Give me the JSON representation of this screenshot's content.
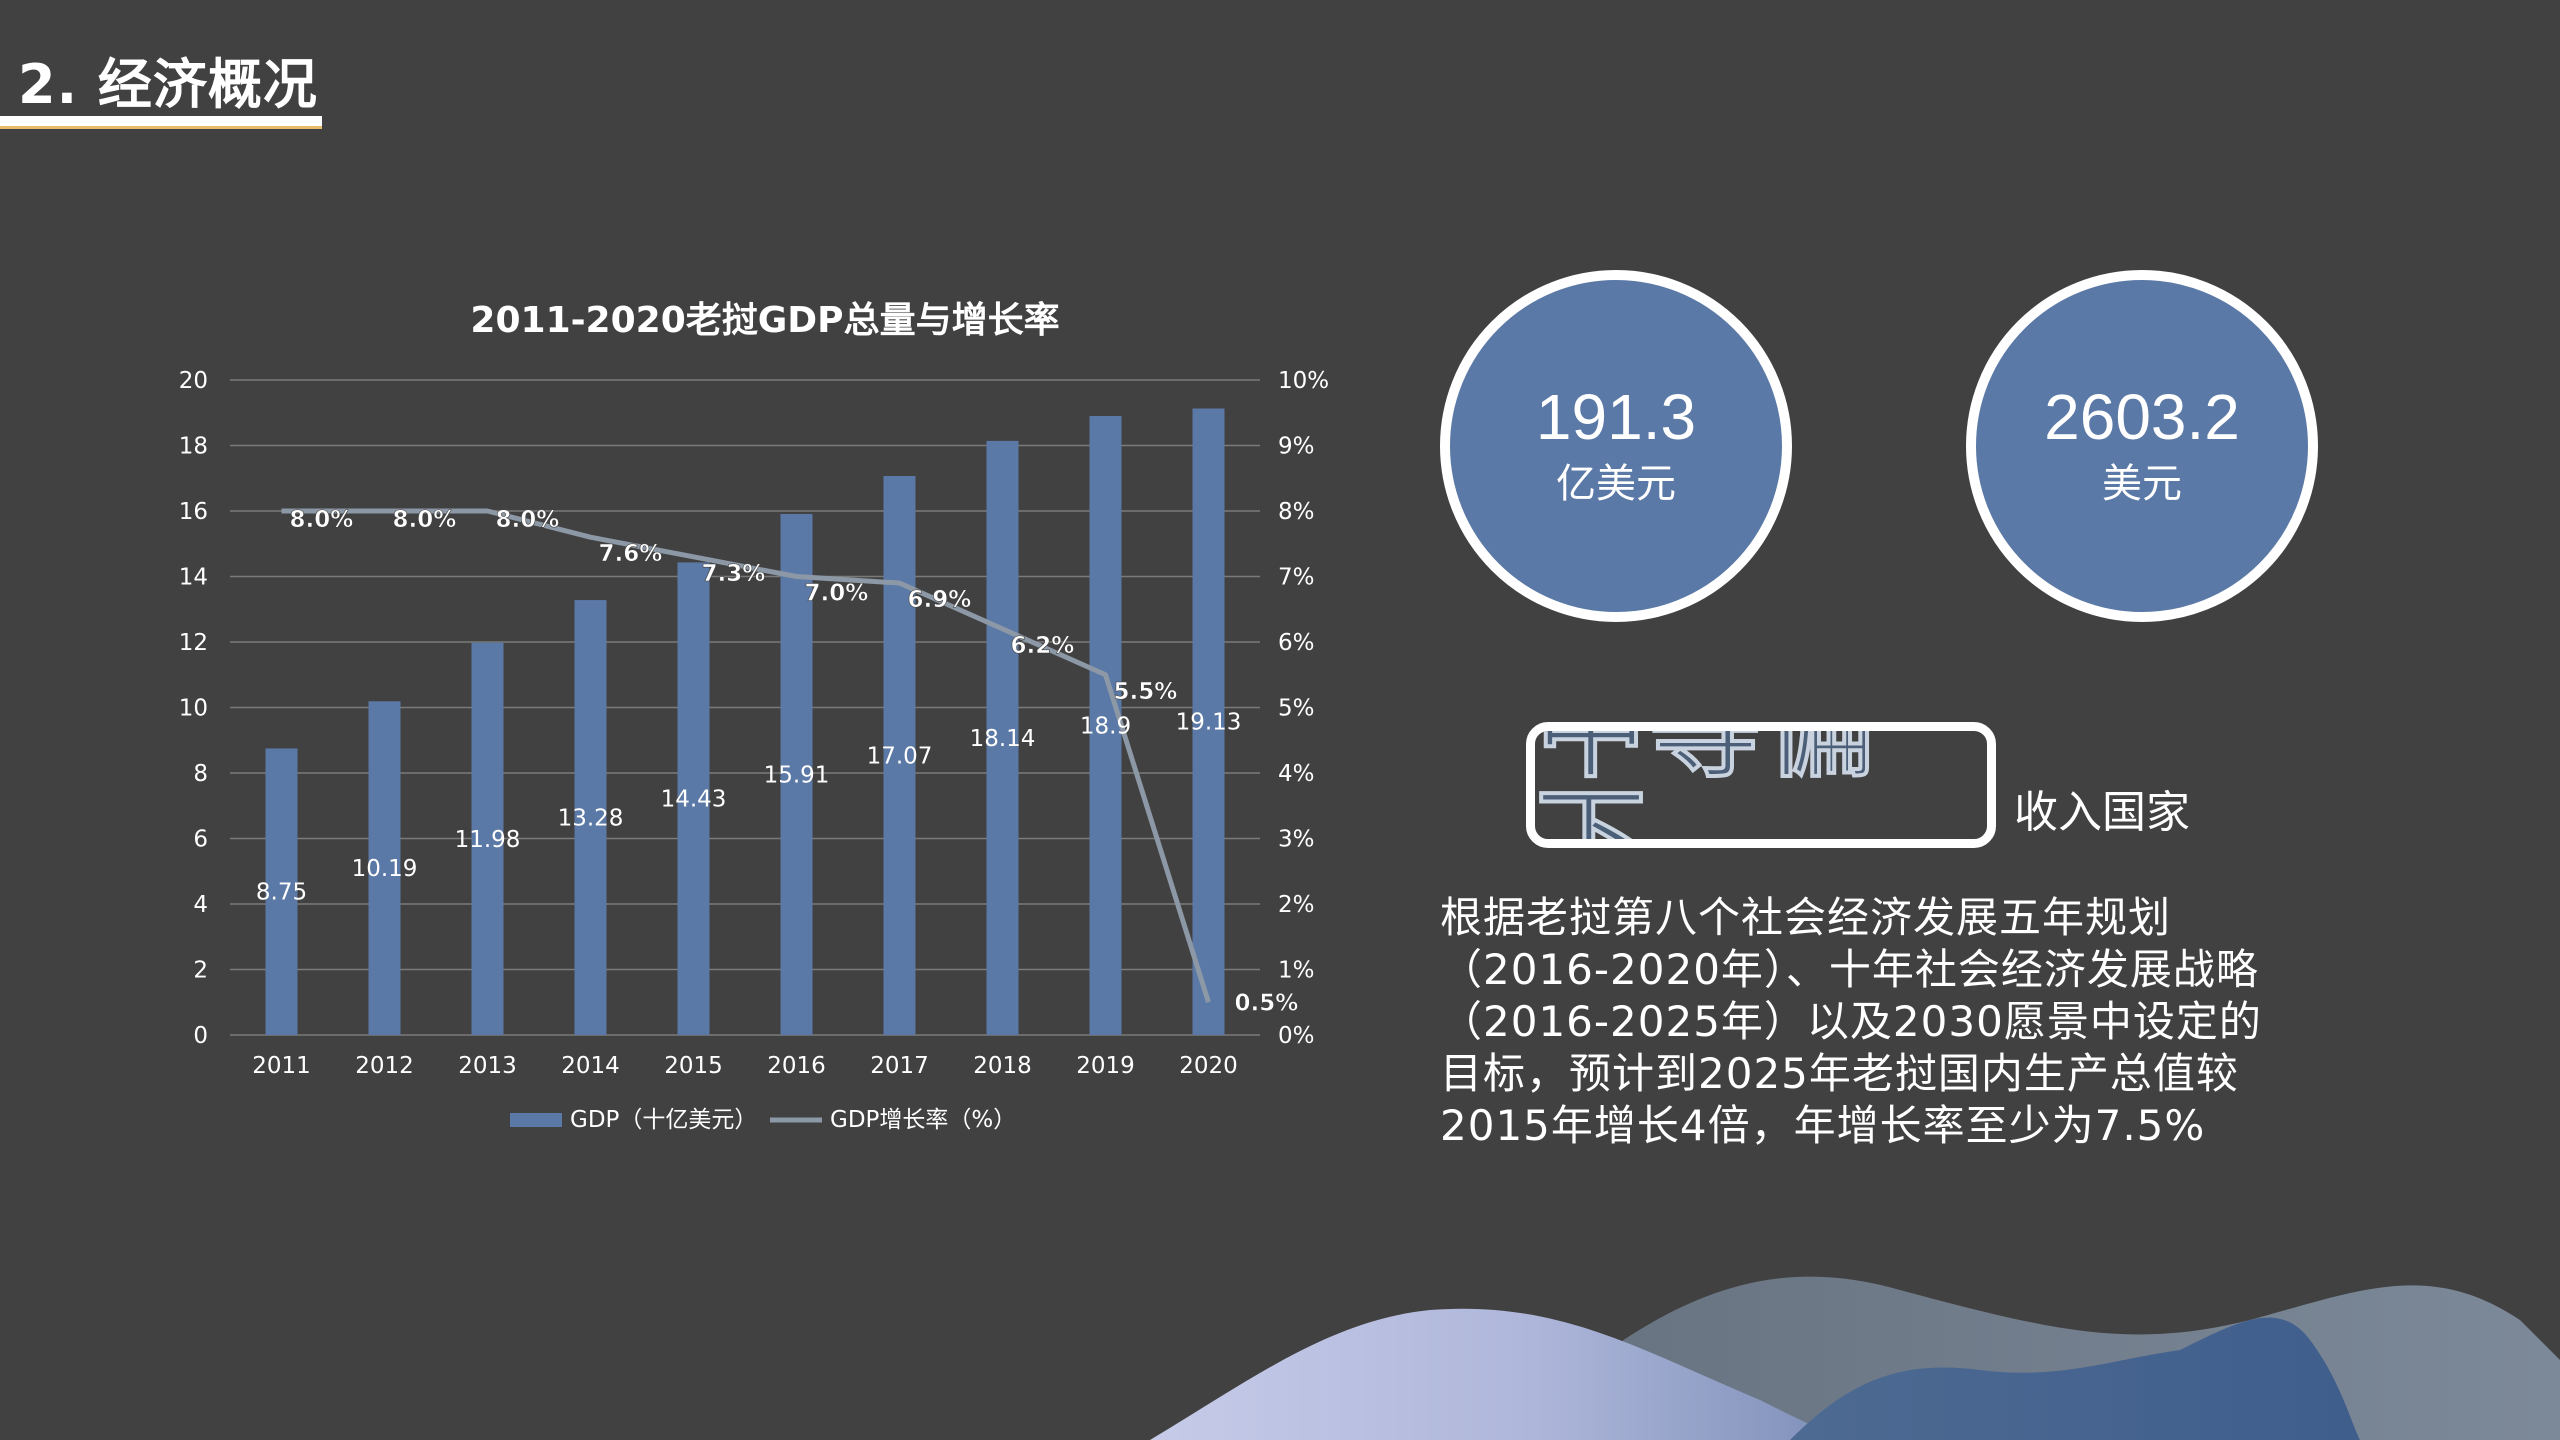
{
  "slide": {
    "title": "2. 经济概况"
  },
  "stats": [
    {
      "value": "191.3",
      "unit": "亿美元"
    },
    {
      "value": "2603.2",
      "unit": "美元"
    }
  ],
  "income": {
    "level": "中等偏下",
    "suffix": "收入国家"
  },
  "description": "根据老挝第八个社会经济发展五年规划（2016-2020年）、十年社会经济发展战略（2016-2025年）以及2030愿景中设定的目标，预计到2025年老挝国内生产总值较2015年增长4倍，年增长率至少为7.5%",
  "chart_data": {
    "type": "bar",
    "title": "2011-2020老挝GDP总量与增长率",
    "categories": [
      "2011",
      "2012",
      "2013",
      "2014",
      "2015",
      "2016",
      "2017",
      "2018",
      "2019",
      "2020"
    ],
    "series": [
      {
        "name": "GDP（十亿美元）",
        "type": "bar",
        "axis": "left",
        "values": [
          8.75,
          10.19,
          11.98,
          13.28,
          14.43,
          15.91,
          17.07,
          18.14,
          18.9,
          19.13
        ],
        "labels": [
          "8.75",
          "10.19",
          "11.98",
          "13.28",
          "14.43",
          "15.91",
          "17.07",
          "18.14",
          "18.9",
          "19.13"
        ]
      },
      {
        "name": "GDP增长率（%）",
        "type": "line",
        "axis": "right",
        "values": [
          8.0,
          8.0,
          8.0,
          7.6,
          7.3,
          7.0,
          6.9,
          6.2,
          5.5,
          0.5
        ],
        "labels": [
          "8.0%",
          "8.0%",
          "8.0%",
          "7.6%",
          "7.3%",
          "7.0%",
          "6.9%",
          "6.2%",
          "5.5%",
          "0.5%"
        ]
      }
    ],
    "y_left": {
      "min": 0,
      "max": 20,
      "step": 2,
      "ticks": [
        "0",
        "2",
        "4",
        "6",
        "8",
        "10",
        "12",
        "14",
        "16",
        "18",
        "20"
      ]
    },
    "y_right": {
      "min": 0,
      "max": 10,
      "step": 1,
      "ticks": [
        "0%",
        "1%",
        "2%",
        "3%",
        "4%",
        "5%",
        "6%",
        "7%",
        "8%",
        "9%",
        "10%"
      ]
    },
    "grid": true,
    "legend": "bottom",
    "colors": {
      "bar": "#5b79a6",
      "line": "#8c98a6",
      "grid": "#7a7a7a",
      "text": "#ffffff"
    }
  }
}
